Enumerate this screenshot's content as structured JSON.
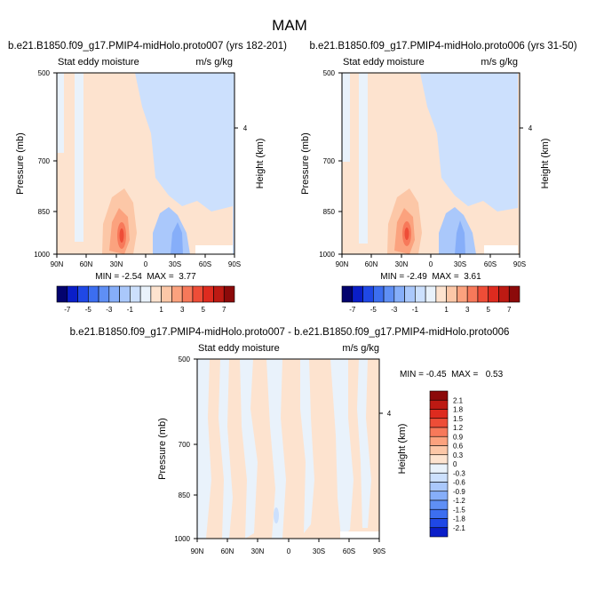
{
  "page_title": "MAM",
  "colors": {
    "neg": [
      "#03036e",
      "#0a1ec8",
      "#1f48e6",
      "#3c6ef0",
      "#5f8ff5",
      "#86aef9",
      "#aac8fb",
      "#cce0fd"
    ],
    "zero": "#e9f2fb",
    "pos": [
      "#fde3cf",
      "#fcc7a7",
      "#fba27e",
      "#f7795a",
      "#ee4d37",
      "#de2b1f",
      "#bd1a13",
      "#8c0a0a"
    ]
  },
  "chart_data": [
    {
      "type": "heatmap",
      "title": "b.e21.B1850.f09_g17.PMIP4-midHolo.proto007 (yrs 182-201)",
      "left_string": "Stat eddy moisture",
      "right_string": "m/s g/kg",
      "ylabel": "Pressure (mb)",
      "ylabel_right": "Height (km)",
      "x_ticks": [
        "90N",
        "60N",
        "30N",
        "0",
        "30S",
        "60S",
        "90S"
      ],
      "y_ticks": [
        "500",
        "700",
        "850",
        "1000"
      ],
      "y_right_ticks": [
        "4"
      ],
      "min_label": "MIN = -2.54  MAX =  3.77",
      "levels": [
        "-7",
        "-5",
        "-3",
        "-1",
        "1",
        "3",
        "5",
        "7"
      ],
      "xlim": [
        90,
        -90
      ],
      "ylim": [
        1000,
        500
      ]
    },
    {
      "type": "heatmap",
      "title": "b.e21.B1850.f09_g17.PMIP4-midHolo.proto006 (yrs 31-50)",
      "left_string": "Stat eddy moisture",
      "right_string": "m/s g/kg",
      "ylabel": "Pressure (mb)",
      "ylabel_right": "Height (km)",
      "x_ticks": [
        "90N",
        "60N",
        "30N",
        "0",
        "30S",
        "60S",
        "90S"
      ],
      "y_ticks": [
        "500",
        "700",
        "850",
        "1000"
      ],
      "y_right_ticks": [
        "4"
      ],
      "min_label": "MIN = -2.49  MAX =  3.61",
      "levels": [
        "-7",
        "-5",
        "-3",
        "-1",
        "1",
        "3",
        "5",
        "7"
      ],
      "xlim": [
        90,
        -90
      ],
      "ylim": [
        1000,
        500
      ]
    },
    {
      "type": "heatmap",
      "title": "b.e21.B1850.f09_g17.PMIP4-midHolo.proto007 - b.e21.B1850.f09_g17.PMIP4-midHolo.proto006",
      "left_string": "Stat eddy moisture",
      "right_string": "m/s g/kg",
      "ylabel": "Pressure (mb)",
      "ylabel_right": "Height (km)",
      "x_ticks": [
        "90N",
        "60N",
        "30N",
        "0",
        "30S",
        "60S",
        "90S"
      ],
      "y_ticks": [
        "500",
        "700",
        "850",
        "1000"
      ],
      "y_right_ticks": [
        "4"
      ],
      "min_label": "MIN = -0.45  MAX =   0.53",
      "levels": [
        "2.1",
        "1.8",
        "1.5",
        "1.2",
        "0.9",
        "0.6",
        "0.3",
        "0",
        "-0.3",
        "-0.6",
        "-0.9",
        "-1.2",
        "-1.5",
        "-1.8",
        "-2.1"
      ],
      "xlim": [
        90,
        -90
      ],
      "ylim": [
        1000,
        500
      ]
    }
  ]
}
